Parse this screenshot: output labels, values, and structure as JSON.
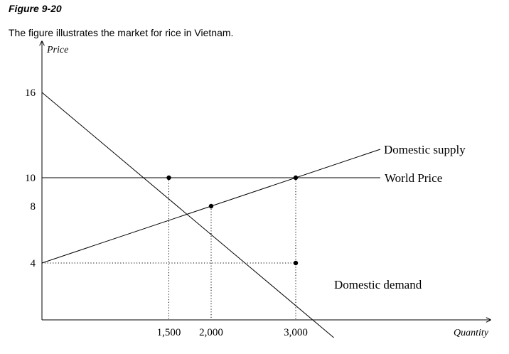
{
  "figure_label": "Figure 9-20",
  "caption": "The figure illustrates the market for rice in Vietnam.",
  "chart_data": {
    "type": "line",
    "xlabel": "Quantity",
    "ylabel": "Price",
    "xlim": [
      0,
      4000
    ],
    "ylim": [
      0,
      18
    ],
    "x_ticks": [
      {
        "value": 1500,
        "label": "1,500"
      },
      {
        "value": 2000,
        "label": "2,000"
      },
      {
        "value": 3000,
        "label": "3,000"
      }
    ],
    "y_ticks": [
      {
        "value": 16,
        "label": "16"
      },
      {
        "value": 10,
        "label": "10"
      },
      {
        "value": 8,
        "label": "8"
      },
      {
        "value": 4,
        "label": "4"
      }
    ],
    "series": [
      {
        "name": "Domestic demand",
        "points": [
          [
            0,
            16
          ],
          [
            3450,
            -1.25
          ]
        ]
      },
      {
        "name": "Domestic supply",
        "points": [
          [
            0,
            4
          ],
          [
            4000,
            12
          ]
        ]
      },
      {
        "name": "World Price",
        "points": [
          [
            0,
            10
          ],
          [
            4000,
            10
          ]
        ]
      }
    ],
    "markers": [
      {
        "x": 1500,
        "y": 10
      },
      {
        "x": 3000,
        "y": 10
      },
      {
        "x": 2000,
        "y": 8
      },
      {
        "x": 3000,
        "y": 4
      }
    ],
    "guides": [
      {
        "from": [
          1500,
          10
        ],
        "to": [
          1500,
          0
        ]
      },
      {
        "from": [
          2000,
          8
        ],
        "to": [
          2000,
          0
        ]
      },
      {
        "from": [
          3000,
          10
        ],
        "to": [
          3000,
          0
        ]
      },
      {
        "from": [
          0,
          4
        ],
        "to": [
          3000,
          4
        ]
      }
    ],
    "grid": false,
    "legend": "none"
  }
}
